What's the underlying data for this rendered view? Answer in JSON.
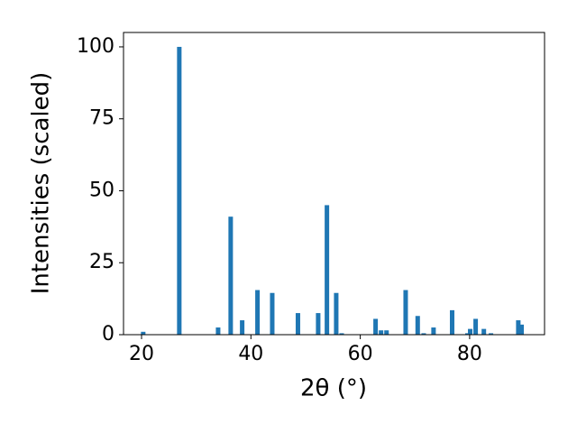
{
  "chart_data": {
    "type": "bar",
    "x_label": "2θ (°)",
    "y_label": "Intensities (scaled)",
    "x": [
      20.3,
      26.9,
      34.0,
      36.3,
      38.4,
      41.2,
      43.9,
      48.6,
      52.3,
      53.9,
      55.6,
      56.6,
      62.8,
      63.8,
      64.8,
      68.3,
      70.5,
      71.6,
      73.4,
      76.8,
      79.6,
      80.1,
      81.1,
      82.6,
      83.9,
      88.9,
      89.5
    ],
    "values": [
      1,
      100,
      2.5,
      41,
      5,
      15.5,
      14.5,
      7.5,
      7.5,
      45,
      14.5,
      0.5,
      5.5,
      1.5,
      1.5,
      15.5,
      6.5,
      0.5,
      2.5,
      8.5,
      0.5,
      2,
      5.5,
      2,
      0.5,
      5,
      3.5
    ],
    "color": "#1f77b4",
    "xlim": [
      16.7,
      93.7
    ],
    "ylim": [
      0,
      105
    ],
    "xticks": [
      20,
      40,
      60,
      80
    ],
    "yticks": [
      0,
      25,
      50,
      75,
      100
    ],
    "grid": false
  }
}
